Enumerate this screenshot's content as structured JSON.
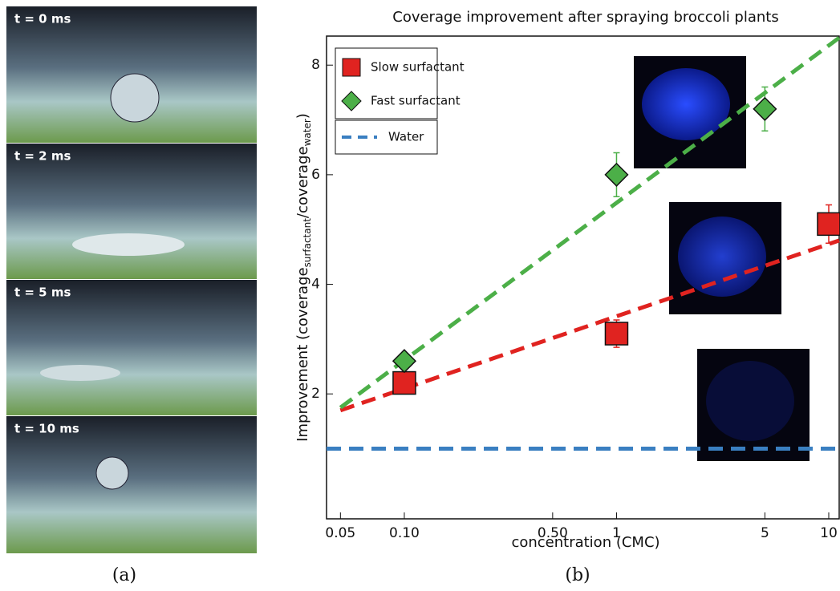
{
  "photos": [
    "t = 0 ms",
    "t = 2 ms",
    "t = 5 ms",
    "t = 10 ms"
  ],
  "panel_labels": [
    "(a)",
    "(b)"
  ],
  "chart_data": {
    "type": "scatter",
    "title": "Coverage improvement after spraying broccoli plants",
    "x_label": "concentration (CMC)",
    "y_label": [
      "Improvement (coverage",
      "surfactant",
      "/coverage",
      "water",
      ")"
    ],
    "xscale": "log",
    "xlim": [
      0.043,
      11.2
    ],
    "ylim": [
      -0.28,
      8.53
    ],
    "xticks": [
      0.05,
      {
        "value": 0.1,
        "label": "0.10"
      },
      {
        "value": 0.5,
        "label": "0.50"
      },
      1,
      5,
      10
    ],
    "yticks": [
      2,
      4,
      6,
      8
    ],
    "series": [
      {
        "name": "Slow surfactant",
        "color": "#e02320",
        "marker": "square",
        "x": [
          0.1,
          1,
          10
        ],
        "values": [
          2.2,
          3.1,
          5.1
        ],
        "errors": [
          0.1,
          0.25,
          0.35
        ]
      },
      {
        "name": "Fast surfactant",
        "color": "#4caf48",
        "marker": "diamond",
        "x": [
          0.1,
          1,
          5
        ],
        "values": [
          2.6,
          6.0,
          7.2
        ],
        "errors": [
          0.1,
          0.4,
          0.4
        ]
      },
      {
        "name": "Water",
        "color": "#3a7fc1",
        "marker": "dashed-line",
        "x": [
          0.043,
          11.2
        ],
        "values": [
          1,
          1
        ]
      }
    ],
    "trend_lines": [
      {
        "color": "#e02320",
        "x": [
          0.05,
          11.2
        ],
        "values": [
          1.7,
          4.8
        ]
      },
      {
        "color": "#4caf48",
        "x": [
          0.05,
          11.2
        ],
        "values": [
          1.75,
          8.5
        ]
      }
    ]
  }
}
